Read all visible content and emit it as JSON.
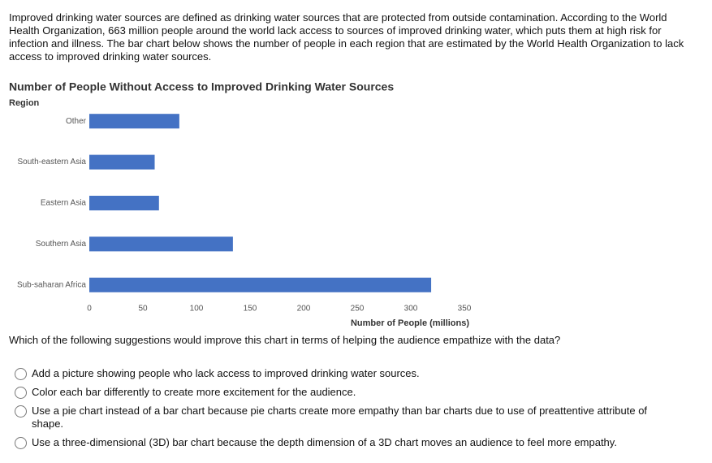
{
  "intro": "Improved drinking water sources are defined as drinking water sources that are protected from outside contamination. According to the World Health Organization, 663 million people around the world lack access to sources of improved drinking water, which puts them at high risk for infection and illness. The bar chart below shows the number of people in each region that are estimated by the World Health Organization to lack access to improved drinking water sources.",
  "chart_data": {
    "type": "bar",
    "orientation": "horizontal",
    "title": "Number of People Without Access to Improved Drinking Water Sources",
    "y_label": "Region",
    "x_label": "Number of People (millions)",
    "categories": [
      "Other",
      "South-eastern Asia",
      "Eastern Asia",
      "Southern Asia",
      "Sub-saharan Africa"
    ],
    "values": [
      84,
      61,
      65,
      134,
      319
    ],
    "color": "#4472c4",
    "xlim": [
      0,
      350
    ],
    "xticks": [
      0,
      50,
      100,
      150,
      200,
      250,
      300,
      350
    ],
    "grid": false
  },
  "question": "Which of the following suggestions would improve this chart in terms of helping the audience empathize with the data?",
  "options": [
    "Add a picture showing people who lack access to improved drinking water sources.",
    "Color each bar differently to create more excitement for the audience.",
    "Use a pie chart instead of a bar chart because pie charts create more empathy than bar charts due to use of preattentive attribute of shape.",
    "Use a three-dimensional (3D) bar chart because the depth dimension of a 3D chart moves an audience to feel more empathy."
  ]
}
